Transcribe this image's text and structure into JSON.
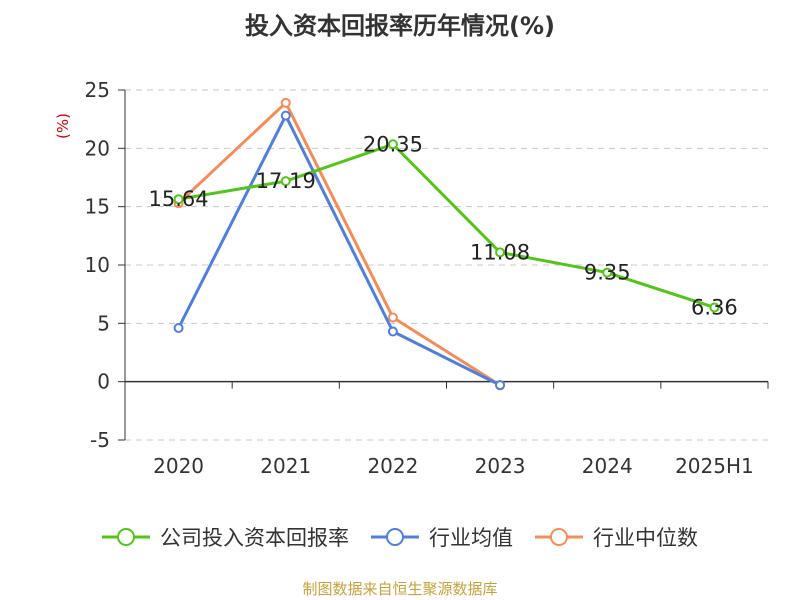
{
  "chart_data": {
    "type": "line",
    "title": "投入资本回报率历年情况(%)",
    "ylabel": "(%)",
    "categories": [
      "2020",
      "2021",
      "2022",
      "2023",
      "2024",
      "2025H1"
    ],
    "ylim": [
      -5,
      25
    ],
    "yticks": [
      -5,
      0,
      5,
      10,
      15,
      20,
      25
    ],
    "grid": true,
    "legend_position": "bottom",
    "series": [
      {
        "name": "公司投入资本回报率",
        "color": "#52c41a",
        "values": [
          15.64,
          17.19,
          20.35,
          11.08,
          9.35,
          6.36
        ],
        "show_labels": true
      },
      {
        "name": "行业均值",
        "color": "#4f7fdc",
        "values": [
          4.6,
          22.8,
          4.3,
          -0.3,
          null,
          null
        ],
        "show_labels": false
      },
      {
        "name": "行业中位数",
        "color": "#f58c58",
        "values": [
          15.3,
          23.9,
          5.5,
          -0.3,
          null,
          null
        ],
        "show_labels": false
      }
    ]
  },
  "footer": {
    "source": "制图数据来自恒生聚源数据库"
  }
}
